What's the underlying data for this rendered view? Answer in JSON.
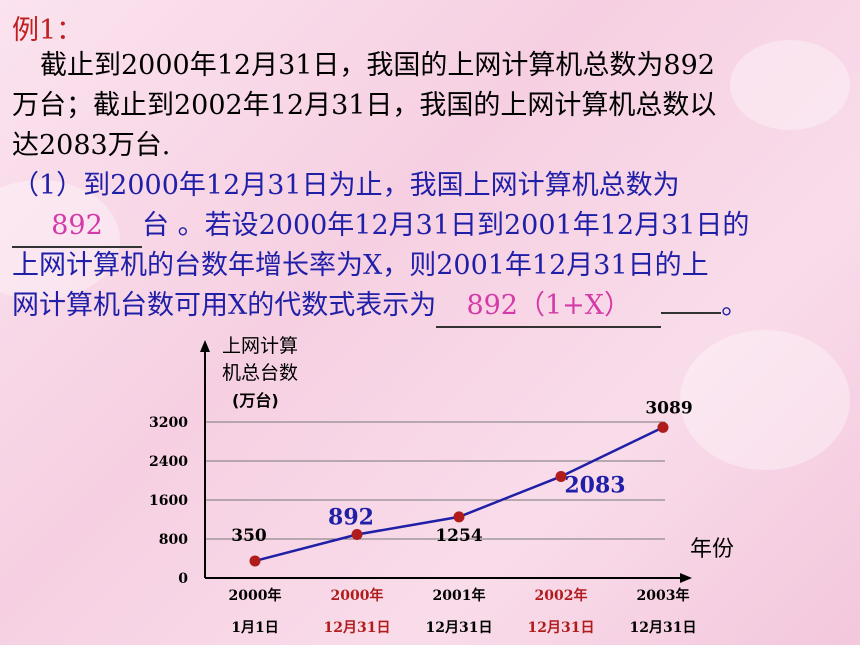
{
  "title": "例1：",
  "problem": {
    "line1": "截止到2000年12月31日，我国的上网计算机总数为892",
    "line2": "万台；截止到2002年12月31日，我国的上网计算机总数以",
    "line3": "达2083万台."
  },
  "question1": {
    "line1": "（1）到2000年12月31日为止，我国上网计算机总数为",
    "blank1_answer": "892",
    "line2_rest": "台 。若设2000年12月31日到2001年12月31日的",
    "line3": "上网计算机的台数年增长率为X，则2001年12月31日的上",
    "line4_start": "网计算机台数可用X的代数式表示为",
    "blank2_answer": "892（1+X）",
    "line4_end": "。"
  },
  "chart_data": {
    "type": "line",
    "ylabel_lines": [
      "上网计算",
      "机总台数",
      "(万台)"
    ],
    "xlabel": "年份",
    "y_ticks": [
      0,
      800,
      1600,
      2400,
      3200
    ],
    "ylim": [
      0,
      3200
    ],
    "categories": [
      {
        "year": "2000年",
        "date": "1月1日",
        "color": "#000000"
      },
      {
        "year": "2000年",
        "date": "12月31日",
        "color": "#b01c1c"
      },
      {
        "year": "2001年",
        "date": "12月31日",
        "color": "#000000"
      },
      {
        "year": "2002年",
        "date": "12月31日",
        "color": "#b01c1c"
      },
      {
        "year": "2003年",
        "date": "12月31日",
        "color": "#000000"
      }
    ],
    "values": [
      350,
      892,
      1254,
      2083,
      3089
    ],
    "data_labels": [
      "350",
      "892",
      "1254",
      "2083",
      "3089"
    ],
    "line_color": "#1f1fa8",
    "point_color": "#b01c1c"
  }
}
